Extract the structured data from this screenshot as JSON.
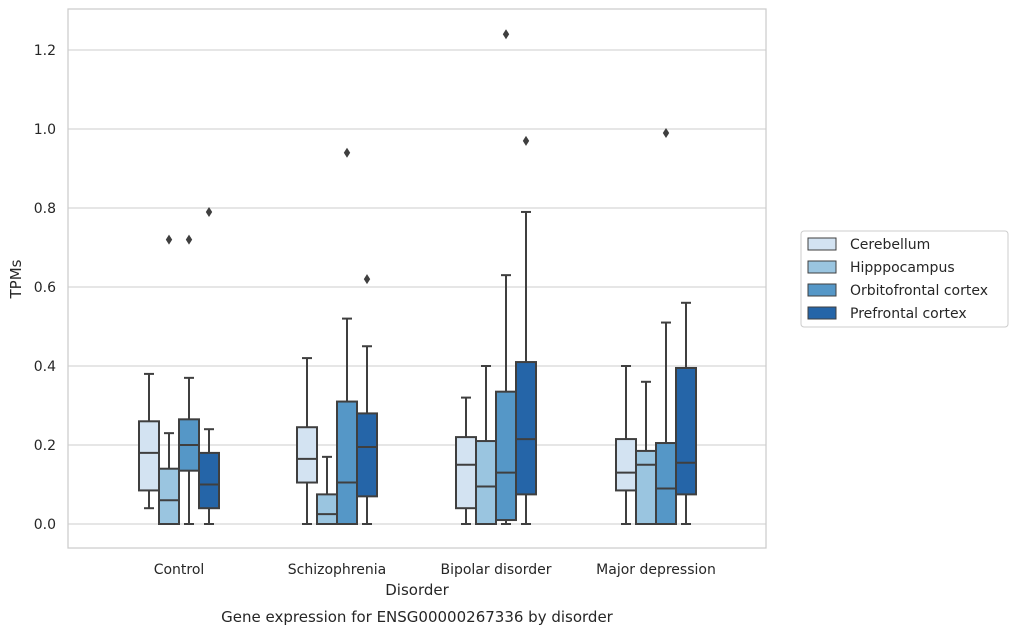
{
  "chart_data": {
    "type": "box",
    "caption": "Gene expression for ENSG00000267336 by disorder",
    "xlabel": "Disorder",
    "ylabel": "TPMs",
    "ylim": [
      -0.06,
      1.3
    ],
    "yticks": [
      "0.0",
      "0.2",
      "0.4",
      "0.6",
      "0.8",
      "1.0",
      "1.2"
    ],
    "grid": "horizontal",
    "legend_position": "right",
    "categories": [
      "Control",
      "Schizophrenia",
      "Bipolar disorder",
      "Major depression"
    ],
    "series": [
      {
        "name": "Cerebellum",
        "color": "#d3e3f2",
        "boxes": [
          {
            "whisker_low": 0.04,
            "q1": 0.085,
            "median": 0.18,
            "q3": 0.26,
            "whisker_high": 0.38,
            "outliers": []
          },
          {
            "whisker_low": 0.0,
            "q1": 0.105,
            "median": 0.165,
            "q3": 0.245,
            "whisker_high": 0.42,
            "outliers": []
          },
          {
            "whisker_low": 0.0,
            "q1": 0.04,
            "median": 0.15,
            "q3": 0.22,
            "whisker_high": 0.32,
            "outliers": []
          },
          {
            "whisker_low": 0.0,
            "q1": 0.085,
            "median": 0.13,
            "q3": 0.215,
            "whisker_high": 0.4,
            "outliers": []
          }
        ]
      },
      {
        "name": "Hipppocampus",
        "color": "#9ac5e0",
        "boxes": [
          {
            "whisker_low": 0.0,
            "q1": 0.0,
            "median": 0.06,
            "q3": 0.14,
            "whisker_high": 0.23,
            "outliers": [
              0.72
            ]
          },
          {
            "whisker_low": 0.0,
            "q1": 0.0,
            "median": 0.025,
            "q3": 0.075,
            "whisker_high": 0.17,
            "outliers": []
          },
          {
            "whisker_low": 0.0,
            "q1": 0.0,
            "median": 0.095,
            "q3": 0.21,
            "whisker_high": 0.4,
            "outliers": []
          },
          {
            "whisker_low": 0.0,
            "q1": 0.0,
            "median": 0.15,
            "q3": 0.185,
            "whisker_high": 0.36,
            "outliers": []
          }
        ]
      },
      {
        "name": "Orbitofrontal cortex",
        "color": "#5597c7",
        "boxes": [
          {
            "whisker_low": 0.0,
            "q1": 0.135,
            "median": 0.2,
            "q3": 0.265,
            "whisker_high": 0.37,
            "outliers": [
              0.72
            ]
          },
          {
            "whisker_low": 0.0,
            "q1": 0.0,
            "median": 0.105,
            "q3": 0.31,
            "whisker_high": 0.52,
            "outliers": [
              0.94
            ]
          },
          {
            "whisker_low": 0.0,
            "q1": 0.01,
            "median": 0.13,
            "q3": 0.335,
            "whisker_high": 0.63,
            "outliers": [
              1.24
            ]
          },
          {
            "whisker_low": 0.0,
            "q1": 0.0,
            "median": 0.09,
            "q3": 0.205,
            "whisker_high": 0.51,
            "outliers": [
              0.99
            ]
          }
        ]
      },
      {
        "name": "Prefrontal cortex",
        "color": "#2565a8",
        "boxes": [
          {
            "whisker_low": 0.0,
            "q1": 0.04,
            "median": 0.1,
            "q3": 0.18,
            "whisker_high": 0.24,
            "outliers": [
              0.79
            ]
          },
          {
            "whisker_low": 0.0,
            "q1": 0.07,
            "median": 0.195,
            "q3": 0.28,
            "whisker_high": 0.45,
            "outliers": [
              0.62
            ]
          },
          {
            "whisker_low": 0.0,
            "q1": 0.075,
            "median": 0.215,
            "q3": 0.41,
            "whisker_high": 0.79,
            "outliers": [
              0.97
            ]
          },
          {
            "whisker_low": 0.0,
            "q1": 0.075,
            "median": 0.155,
            "q3": 0.395,
            "whisker_high": 0.56,
            "outliers": []
          }
        ]
      }
    ]
  }
}
